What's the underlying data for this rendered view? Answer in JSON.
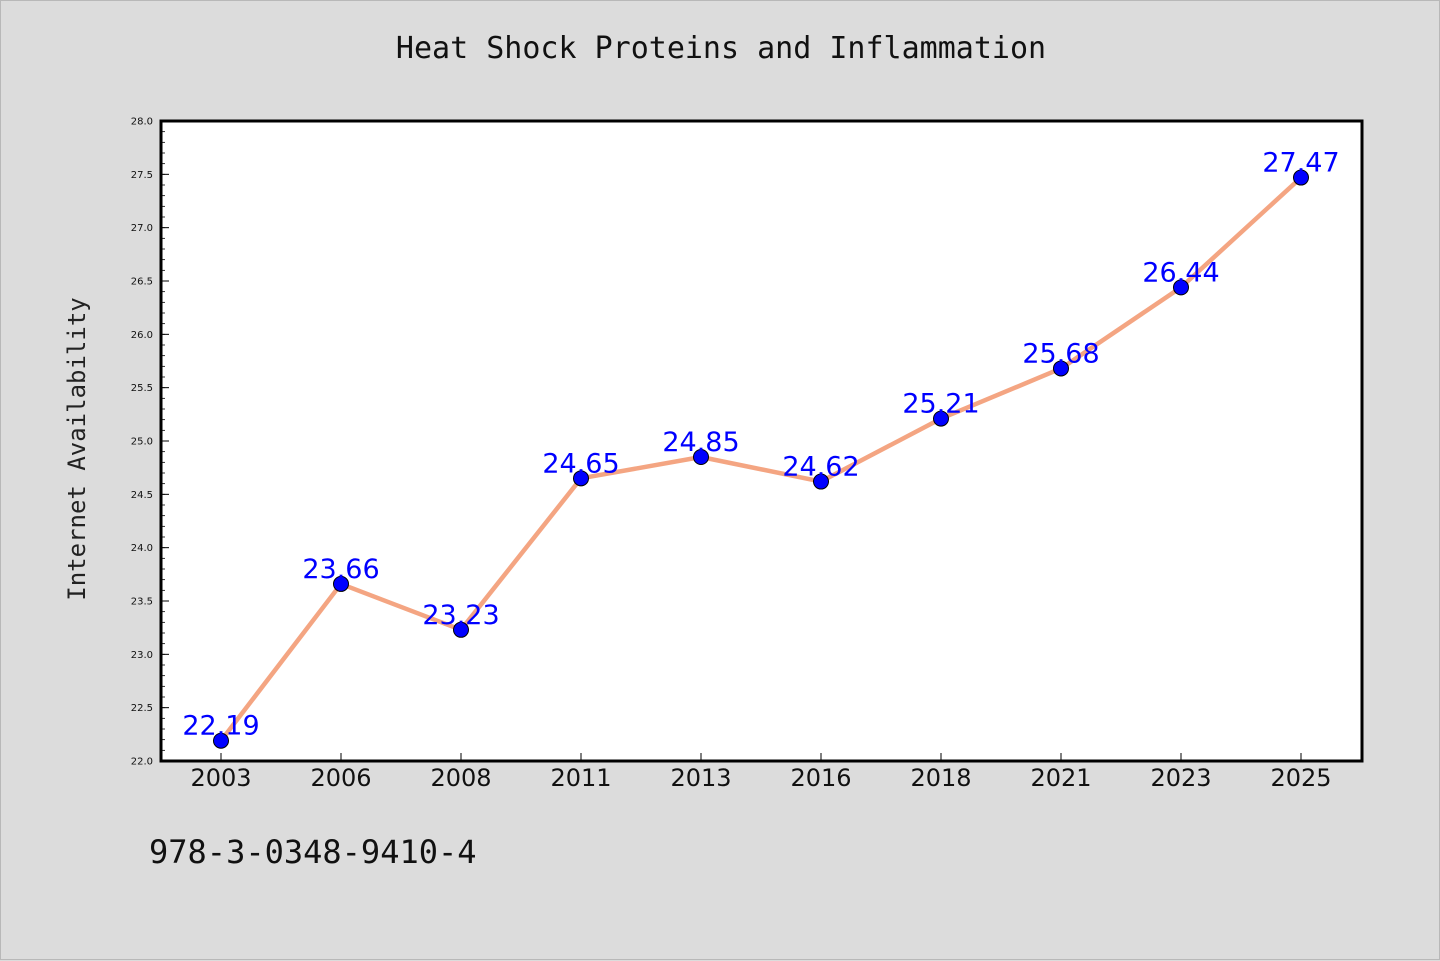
{
  "page": {
    "footer_code": "978-3-0348-9410-4"
  },
  "chart_data": {
    "type": "line",
    "title": "Heat Shock Proteins and Inflammation",
    "xlabel": "",
    "ylabel": "Internet Availability",
    "categories": [
      "2003",
      "2006",
      "2008",
      "2011",
      "2013",
      "2016",
      "2018",
      "2021",
      "2023",
      "2025"
    ],
    "series": [
      {
        "values": [
          22.19,
          23.66,
          23.23,
          24.65,
          24.85,
          24.62,
          25.21,
          25.68,
          26.44,
          27.47
        ],
        "line_color": "#f4a582",
        "marker_color": "#0000ff"
      }
    ],
    "data_labels": [
      "22.19",
      "23.66",
      "23.23",
      "24.65",
      "24.85",
      "24.62",
      "25.21",
      "25.68",
      "26.44",
      "27.47"
    ],
    "data_label_color": "#0000ff",
    "ylim": [
      22.0,
      28.0
    ],
    "yticks": [
      "22.0",
      "22.5",
      "23.0",
      "23.5",
      "24.0",
      "24.5",
      "25.0",
      "25.5",
      "26.0",
      "26.5",
      "27.0",
      "27.5",
      "28.0"
    ],
    "grid": false,
    "legend": "none",
    "plot_background": "#ffffff",
    "figure_background": "#dcdcdc"
  }
}
